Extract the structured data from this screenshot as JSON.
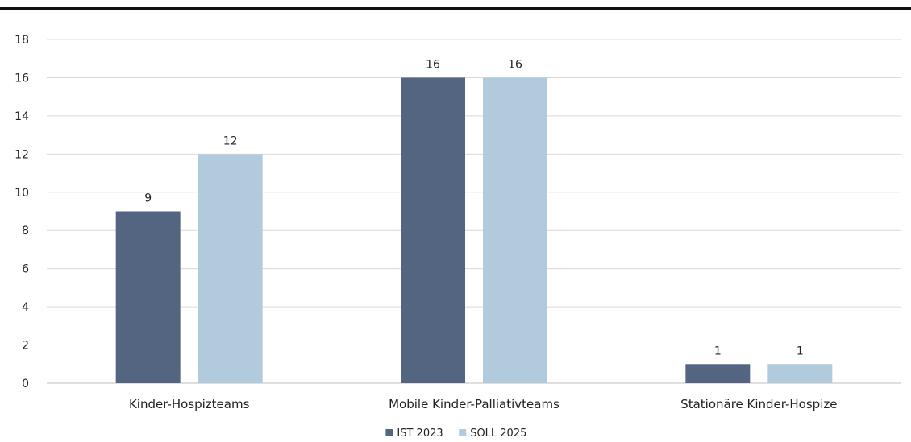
{
  "chart_data": {
    "type": "bar",
    "categories": [
      "Kinder-Hospizteams",
      "Mobile Kinder-Palliativteams",
      "Stationäre Kinder-Hospize"
    ],
    "series": [
      {
        "name": "IST 2023",
        "values": [
          9,
          16,
          1
        ],
        "color": "#546582"
      },
      {
        "name": "SOLL 2025",
        "values": [
          12,
          16,
          1
        ],
        "color": "#b1cbdd"
      }
    ],
    "ylim": [
      0,
      18
    ],
    "yticks": [
      0,
      2,
      4,
      6,
      8,
      10,
      12,
      14,
      16,
      18
    ],
    "grid": true,
    "legend_position": "bottom",
    "data_labels": true
  }
}
